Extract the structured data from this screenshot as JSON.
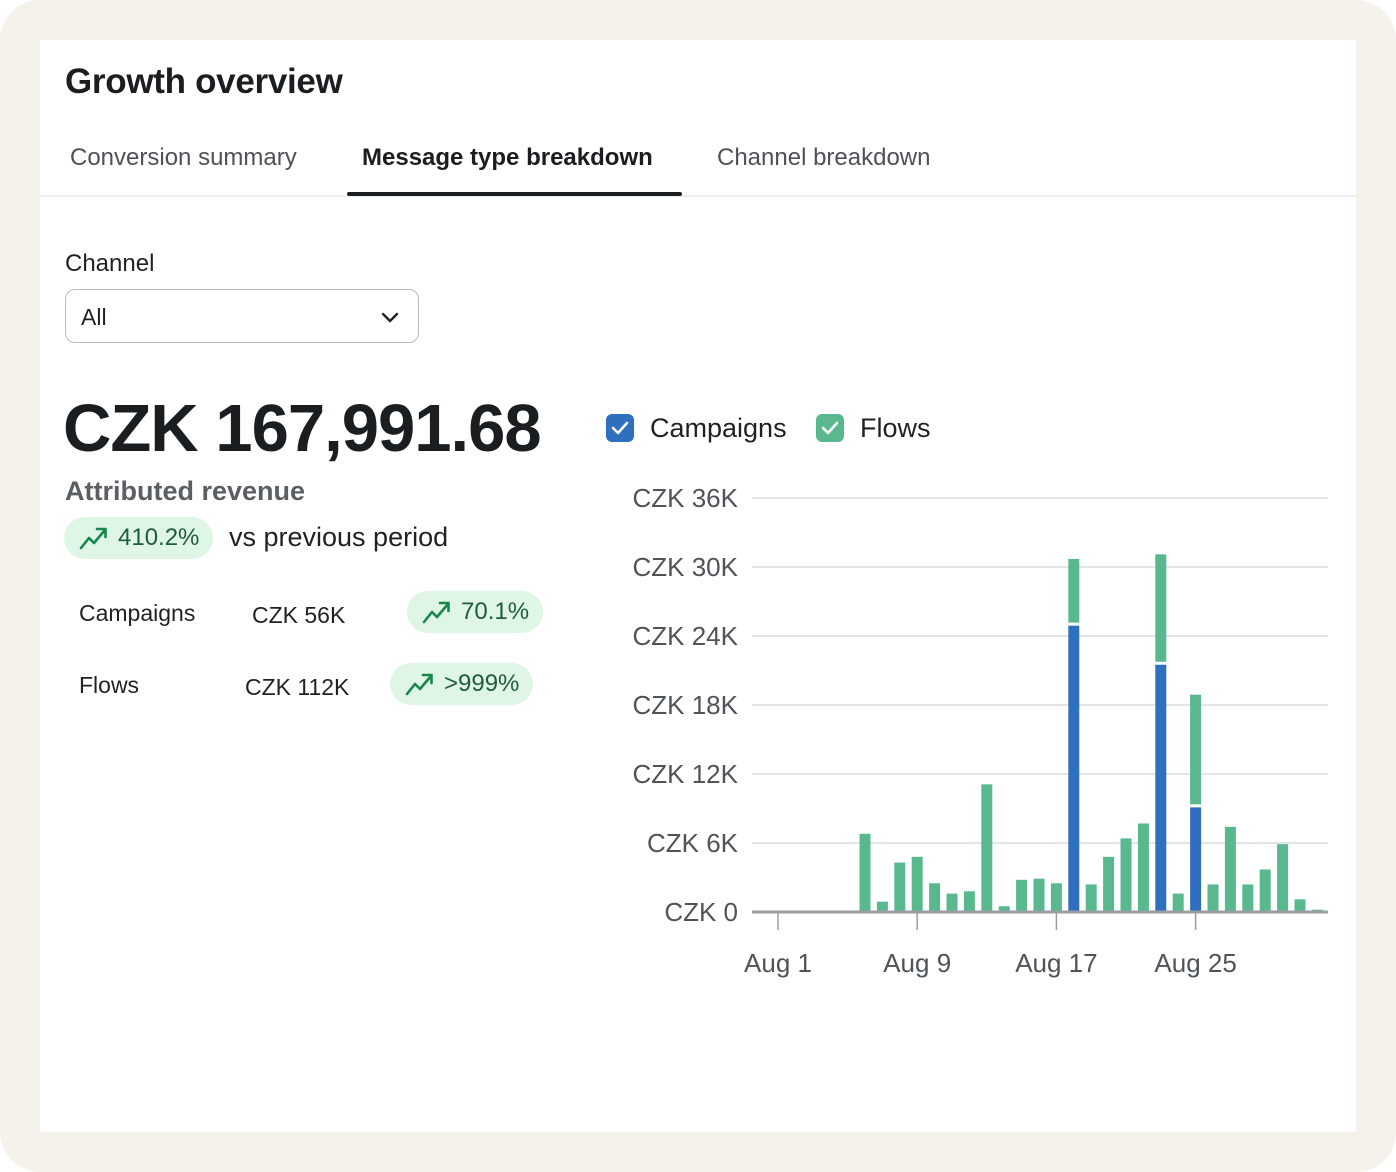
{
  "header": {
    "title": "Growth overview"
  },
  "tabs": [
    {
      "label": "Conversion summary"
    },
    {
      "label": "Message type breakdown"
    },
    {
      "label": "Channel breakdown"
    }
  ],
  "filter": {
    "label": "Channel",
    "value": "All"
  },
  "summary": {
    "total": "CZK 167,991.68",
    "total_label": "Attributed revenue",
    "change": "410.2%",
    "change_suffix": "vs previous period",
    "rows": [
      {
        "label": "Campaigns",
        "value": "CZK 56K",
        "change": "70.1%"
      },
      {
        "label": "Flows",
        "value": "CZK 112K",
        "change": ">999%"
      }
    ]
  },
  "colors": {
    "campaigns": "#2f6fbd",
    "flows": "#5ab88f",
    "positive_bg": "#dff5e6",
    "positive_fg": "#17874b"
  },
  "icons": {
    "dropdown": "chevron-down-icon",
    "trend": "trend-up-icon",
    "check": "checkmark-icon"
  },
  "legend": [
    {
      "name": "Campaigns",
      "checked": true,
      "color": "#2f6fbd"
    },
    {
      "name": "Flows",
      "checked": true,
      "color": "#5ab88f"
    }
  ],
  "chart_data": {
    "type": "bar",
    "stacked": true,
    "title": "",
    "xlabel": "",
    "ylabel": "",
    "ylim": [
      0,
      36000
    ],
    "y_ticks": [
      "CZK 0",
      "CZK 6K",
      "CZK 12K",
      "CZK 18K",
      "CZK 24K",
      "CZK 30K",
      "CZK 36K"
    ],
    "y_tick_values": [
      0,
      6000,
      12000,
      18000,
      24000,
      30000,
      36000
    ],
    "x_ticks": [
      "Aug 1",
      "Aug 9",
      "Aug 17",
      "Aug 25"
    ],
    "x_tick_days": [
      1,
      9,
      17,
      25
    ],
    "categories": [
      1,
      2,
      3,
      4,
      5,
      6,
      7,
      8,
      9,
      10,
      11,
      12,
      13,
      14,
      15,
      16,
      17,
      18,
      19,
      20,
      21,
      22,
      23,
      24,
      25,
      26,
      27,
      28,
      29,
      30,
      31
    ],
    "series": [
      {
        "name": "Campaigns",
        "values": [
          0,
          0,
          0,
          0,
          0,
          0,
          0,
          0,
          0,
          0,
          0,
          0,
          0,
          0,
          0,
          0,
          0,
          24900,
          0,
          0,
          0,
          0,
          21500,
          0,
          9100,
          0,
          0,
          0,
          0,
          0,
          0
        ]
      },
      {
        "name": "Flows",
        "values": [
          0,
          0,
          0,
          0,
          0,
          6800,
          900,
          4300,
          4800,
          2500,
          1600,
          1800,
          11100,
          500,
          2800,
          2900,
          2500,
          5800,
          2400,
          4800,
          6400,
          7700,
          9600,
          1600,
          9800,
          2400,
          7400,
          2400,
          3700,
          5900,
          1100
        ]
      }
    ],
    "extra_points": [
      {
        "day": 32,
        "flows": 200
      }
    ]
  }
}
